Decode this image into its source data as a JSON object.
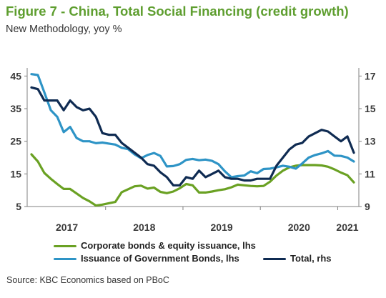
{
  "chart_data": {
    "type": "line",
    "title": "Figure 7 - China, Total Social Financing (credit growth)",
    "subtitle": "New Methodology, yoy %",
    "x": [
      "2017-01",
      "2017-02",
      "2017-03",
      "2017-04",
      "2017-05",
      "2017-06",
      "2017-07",
      "2017-08",
      "2017-09",
      "2017-10",
      "2017-11",
      "2017-12",
      "2018-01",
      "2018-02",
      "2018-03",
      "2018-04",
      "2018-05",
      "2018-06",
      "2018-07",
      "2018-08",
      "2018-09",
      "2018-10",
      "2018-11",
      "2018-12",
      "2019-01",
      "2019-02",
      "2019-03",
      "2019-04",
      "2019-05",
      "2019-06",
      "2019-07",
      "2019-08",
      "2019-09",
      "2019-10",
      "2019-11",
      "2019-12",
      "2020-01",
      "2020-02",
      "2020-03",
      "2020-04",
      "2020-05",
      "2020-06",
      "2020-07",
      "2020-08",
      "2020-09",
      "2020-10",
      "2020-11",
      "2020-12",
      "2021-01",
      "2021-02",
      "2021-03"
    ],
    "x_tick_labels": [
      "2017",
      "2018",
      "2019",
      "2020",
      "2021"
    ],
    "y_left": {
      "ticks": [
        45,
        35,
        25,
        15,
        5
      ],
      "range": [
        5,
        47.5
      ]
    },
    "y_right": {
      "ticks": [
        17,
        15,
        13,
        11,
        9
      ],
      "range": [
        9,
        17.5
      ]
    },
    "grid": false,
    "legend_position": "bottom",
    "series": [
      {
        "name": "Corporate bonds & equity issuance, lhs",
        "axis": "left",
        "color": "#6aa123",
        "values": [
          21.0,
          18.8,
          15.3,
          13.5,
          11.9,
          10.4,
          10.4,
          9.0,
          7.6,
          6.6,
          5.3,
          5.6,
          6.0,
          6.4,
          9.4,
          10.3,
          11.2,
          11.4,
          10.5,
          10.8,
          9.5,
          9.1,
          9.6,
          10.6,
          11.9,
          11.5,
          9.3,
          9.3,
          9.6,
          10.0,
          10.3,
          10.9,
          11.7,
          11.5,
          11.3,
          11.2,
          11.3,
          12.6,
          14.5,
          16.0,
          17.0,
          17.5,
          17.7,
          17.7,
          17.7,
          17.6,
          17.2,
          16.4,
          15.4,
          14.6,
          12.4
        ]
      },
      {
        "name": "Issuance of Government Bonds, lhs",
        "axis": "left",
        "color": "#2e94c6",
        "values": [
          45.6,
          45.3,
          40.0,
          34.5,
          32.5,
          27.8,
          29.4,
          26.0,
          25.0,
          25.0,
          24.4,
          24.6,
          24.3,
          24.0,
          23.0,
          22.6,
          21.0,
          19.8,
          20.8,
          21.4,
          20.5,
          17.3,
          17.4,
          18.0,
          19.3,
          19.6,
          19.2,
          19.4,
          19.0,
          18.0,
          15.8,
          14.0,
          14.3,
          14.5,
          15.8,
          15.2,
          16.5,
          16.6,
          17.0,
          17.5,
          17.2,
          16.6,
          18.2,
          20.0,
          20.8,
          21.3,
          22.0,
          20.6,
          20.5,
          20.0,
          18.8
        ]
      },
      {
        "name": "Total, rhs",
        "axis": "right",
        "color": "#0f2b52",
        "values": [
          16.3,
          16.2,
          15.5,
          15.5,
          15.5,
          14.9,
          15.5,
          15.1,
          14.9,
          15.0,
          14.5,
          13.5,
          13.4,
          13.4,
          12.9,
          12.6,
          12.3,
          12.0,
          11.6,
          11.5,
          11.1,
          10.8,
          10.3,
          10.3,
          10.8,
          10.7,
          11.2,
          10.8,
          11.0,
          11.2,
          10.8,
          10.7,
          10.7,
          10.6,
          10.6,
          10.7,
          10.7,
          10.7,
          11.5,
          12.0,
          12.5,
          12.8,
          12.9,
          13.3,
          13.5,
          13.7,
          13.6,
          13.3,
          13.0,
          13.3,
          12.3
        ]
      }
    ]
  },
  "source": "Source: KBC Economics based on PBoC"
}
